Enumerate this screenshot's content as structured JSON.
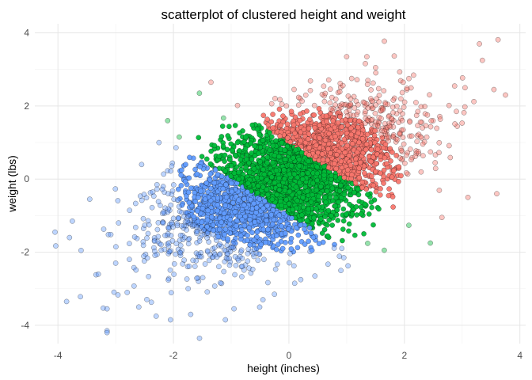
{
  "chart_data": {
    "type": "scatter",
    "title": "scatterplot of clustered height and weight",
    "xlabel": "height (inches)",
    "ylabel": "weight (lbs)",
    "xlim": [
      -4.4,
      4.1
    ],
    "ylim": [
      -4.5,
      4.25
    ],
    "x_ticks": [
      -4,
      -2,
      0,
      2,
      4
    ],
    "y_ticks": [
      -4,
      -2,
      0,
      2,
      4
    ],
    "grid": true,
    "legend": "none",
    "point_shape": "circle",
    "point_outline": "#000000",
    "clusters": [
      {
        "color": "#619CFF",
        "core_opacity": 1.0,
        "center": [
          -1.1,
          -1.15
        ]
      },
      {
        "color": "#00BA38",
        "core_opacity": 1.0,
        "center": [
          0.0,
          0.0
        ]
      },
      {
        "color": "#F8766D",
        "core_opacity": 1.0,
        "center": [
          1.1,
          1.15
        ]
      }
    ],
    "cluster_boundaries": {
      "direction": [
        0.7,
        0.714
      ],
      "thresholds": [
        -0.7,
        0.7
      ]
    },
    "points": [
      [
        -4.05,
        -1.45
      ],
      [
        -3.8,
        -1.6
      ],
      [
        -3.75,
        -1.15
      ],
      [
        -3.45,
        -0.55
      ],
      [
        -3.85,
        -3.35
      ],
      [
        -3.15,
        -3.55
      ],
      [
        -3.15,
        -4.15
      ],
      [
        -3.15,
        -4.2
      ],
      [
        -3.3,
        -2.6
      ],
      [
        -3.6,
        -1.95
      ],
      [
        -3.0,
        -2.3
      ],
      [
        -2.95,
        -1.2
      ],
      [
        -2.8,
        -3.1
      ],
      [
        -2.6,
        -3.5
      ],
      [
        -2.3,
        -3.75
      ],
      [
        -2.05,
        -3.85
      ],
      [
        -1.7,
        -3.7
      ],
      [
        -1.1,
        -3.85
      ],
      [
        -0.95,
        -3.55
      ],
      [
        -0.45,
        -3.3
      ],
      [
        -0.25,
        -3.15
      ],
      [
        0.1,
        -2.85
      ],
      [
        0.45,
        -2.65
      ],
      [
        0.9,
        -2.5
      ],
      [
        2.45,
        -1.75
      ],
      [
        2.65,
        -1.05
      ],
      [
        3.1,
        -0.5
      ],
      [
        3.6,
        -0.4
      ],
      [
        3.3,
        3.7
      ],
      [
        3.35,
        3.25
      ],
      [
        3.05,
        2.5
      ],
      [
        3.75,
        2.3
      ],
      [
        3.55,
        2.45
      ],
      [
        2.9,
        1.85
      ],
      [
        1.35,
        3.35
      ],
      [
        1.5,
        3.05
      ],
      [
        1.0,
        3.35
      ],
      [
        -1.35,
        2.65
      ],
      [
        -1.55,
        2.35
      ],
      [
        -2.1,
        1.6
      ],
      [
        -1.9,
        1.15
      ],
      [
        -2.55,
        0.4
      ],
      [
        -2.25,
        1.0
      ],
      [
        0.95,
        -2.15
      ]
    ]
  }
}
